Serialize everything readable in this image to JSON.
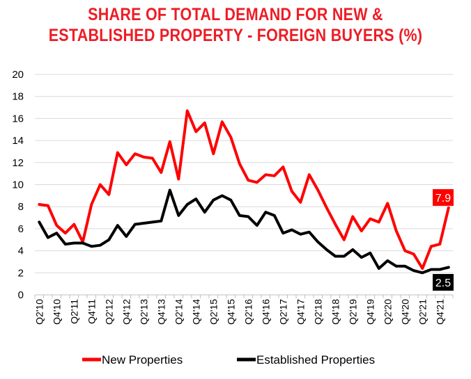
{
  "chart_data": {
    "type": "line",
    "title_lines": [
      "SHARE OF TOTAL DEMAND FOR NEW &",
      "ESTABLISHED PROPERTY - FOREIGN BUYERS (%)"
    ],
    "ylim": [
      0,
      20
    ],
    "yticks": [
      0,
      2,
      4,
      6,
      8,
      10,
      12,
      14,
      16,
      18,
      20
    ],
    "grid": true,
    "legend_position": "bottom",
    "x": [
      "Q2'10",
      "Q3'10",
      "Q4'10",
      "Q1'11",
      "Q2'11",
      "Q3'11",
      "Q4'11",
      "Q1'12",
      "Q2'12",
      "Q3'12",
      "Q4'12",
      "Q1'13",
      "Q2'13",
      "Q3'13",
      "Q4'13",
      "Q1'14",
      "Q2'14",
      "Q3'14",
      "Q4'14",
      "Q1'15",
      "Q2'15",
      "Q3'15",
      "Q4'15",
      "Q1'16",
      "Q2'16",
      "Q3'16",
      "Q4'16",
      "Q1'17",
      "Q2'17",
      "Q3'17",
      "Q4'17",
      "Q1'18",
      "Q2'18",
      "Q3'18",
      "Q4'18",
      "Q1'19",
      "Q2'19",
      "Q3'19",
      "Q4'19",
      "Q1'20",
      "Q2'20",
      "Q3'20",
      "Q4'20",
      "Q1'21",
      "Q2'21",
      "Q3'21",
      "Q4'21",
      "Q1'22"
    ],
    "x_tick_labels": [
      "Q2'10",
      "Q4'10",
      "Q2'11",
      "Q4'11",
      "Q2'12",
      "Q4'12",
      "Q2'13",
      "Q4'13",
      "Q2'14",
      "Q4'14",
      "Q2'15",
      "Q4'15",
      "Q2'16",
      "Q4'16",
      "Q2'17",
      "Q4'17",
      "Q2'18",
      "Q4'18",
      "Q2'19",
      "Q4'19",
      "Q2'20",
      "Q4'20",
      "Q2'21",
      "Q4'21"
    ],
    "series": [
      {
        "name": "New Properties",
        "color": "#ff0000",
        "values": [
          8.2,
          8.1,
          6.3,
          5.6,
          6.4,
          4.8,
          8.2,
          10.0,
          9.1,
          12.9,
          11.8,
          12.8,
          12.5,
          12.4,
          11.1,
          13.9,
          10.5,
          16.7,
          14.8,
          15.6,
          12.8,
          15.7,
          14.3,
          11.9,
          10.4,
          10.2,
          10.9,
          10.8,
          11.6,
          9.4,
          8.4,
          10.9,
          9.5,
          7.9,
          6.4,
          5.0,
          7.1,
          5.8,
          6.9,
          6.6,
          8.3,
          5.8,
          4.0,
          3.7,
          2.4,
          4.4,
          4.6,
          7.9
        ]
      },
      {
        "name": "Established Properties",
        "color": "#000000",
        "values": [
          6.6,
          5.2,
          5.6,
          4.6,
          4.7,
          4.7,
          4.4,
          4.5,
          5.0,
          6.3,
          5.3,
          6.4,
          6.5,
          6.6,
          6.7,
          9.5,
          7.2,
          8.2,
          8.7,
          7.5,
          8.6,
          9.0,
          8.6,
          7.2,
          7.1,
          6.3,
          7.5,
          7.2,
          5.6,
          5.9,
          5.5,
          5.7,
          4.8,
          4.1,
          3.5,
          3.5,
          4.1,
          3.4,
          3.8,
          2.4,
          3.1,
          2.6,
          2.6,
          2.2,
          2.0,
          2.3,
          2.3,
          2.5
        ]
      }
    ],
    "end_labels": [
      "7.9",
      "2.5"
    ]
  },
  "colors": {
    "title": "#ee1c25",
    "new": "#ff0000",
    "established": "#000000",
    "grid": "#d9d9d9"
  }
}
